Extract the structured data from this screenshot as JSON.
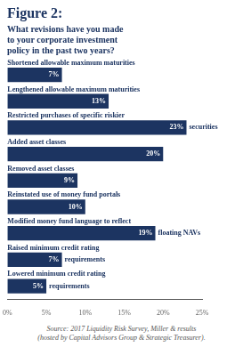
{
  "chart_data": {
    "type": "bar",
    "orientation": "horizontal",
    "title": "Figure 2:",
    "subtitle": "What revisions have you made\nto your corporate investment\npolicy in the past two years?",
    "categories": [
      "Shortened allowable maximum maturities",
      "Lengthened allowable maximum maturities",
      [
        "Restricted purchases of specific riskier",
        "securities"
      ],
      "Added asset classes",
      "Removed asset classes",
      "Reinstated use of money fund portals",
      [
        "Modified money fund language to reflect",
        "floating NAVs"
      ],
      [
        "Raised minimum credit rating",
        "requirements"
      ],
      [
        "Lowered minimum credit rating",
        "requirements"
      ]
    ],
    "values": [
      7,
      13,
      23,
      20,
      9,
      10,
      19,
      7,
      5
    ],
    "value_labels": [
      "7%",
      "13%",
      "23%",
      "20%",
      "9%",
      "10%",
      "19%",
      "7%",
      "5%"
    ],
    "data_labels": true,
    "color": "#1c3461",
    "xlim": [
      0,
      25
    ],
    "xticks": [
      {
        "value": 0,
        "label": "0%"
      },
      {
        "value": 5,
        "label": "5%"
      },
      {
        "value": 10,
        "label": "10%"
      },
      {
        "value": 15,
        "label": "15%"
      },
      {
        "value": 20,
        "label": "20%"
      },
      {
        "value": 25,
        "label": "25%"
      }
    ],
    "grid": false,
    "source": "Source: 2017 Liquidity Risk Survey, Miller & results\n(hosted by Capital Advisors Group & Strategic Treasurer)."
  }
}
